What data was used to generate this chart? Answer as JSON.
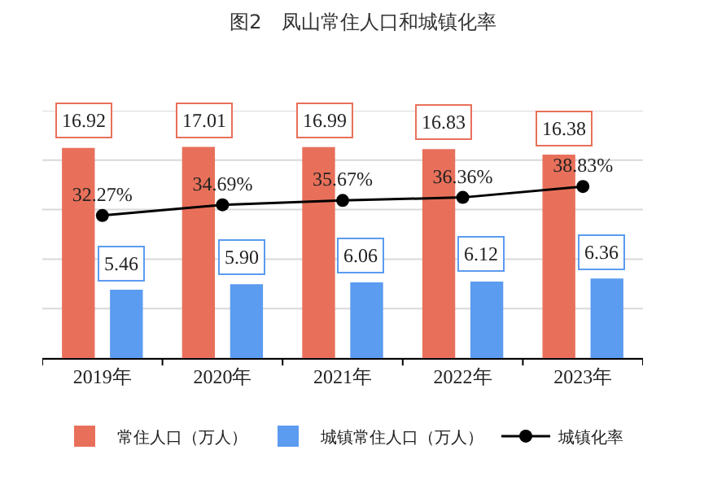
{
  "chart_data": {
    "type": "bar",
    "title": "图2　凤山常住人口和城镇化率",
    "categories": [
      "2019年",
      "2020年",
      "2021年",
      "2022年",
      "2023年"
    ],
    "series": [
      {
        "name": "常住人口（万人）",
        "color": "#e8705a",
        "values": [
          16.92,
          17.01,
          16.99,
          16.83,
          16.38
        ],
        "value_labels": [
          "16.92",
          "17.01",
          "16.99",
          "16.83",
          "16.38"
        ]
      },
      {
        "name": "城镇常住人口（万人）",
        "color": "#5b9bf0",
        "values": [
          5.46,
          5.9,
          6.06,
          6.12,
          6.36
        ],
        "value_labels": [
          "5.46",
          "5.90",
          "6.06",
          "6.12",
          "6.36"
        ]
      },
      {
        "name": "城镇化率",
        "type": "line",
        "axis": "y2",
        "color": "#000000",
        "values": [
          32.27,
          34.69,
          35.67,
          36.36,
          38.83
        ],
        "value_labels": [
          "32.27%",
          "34.69%",
          "35.67%",
          "36.36%",
          "38.83%"
        ]
      }
    ],
    "ylim": [
      0,
      20
    ],
    "yticks": [
      {
        "value": 0,
        "label": null
      },
      {
        "value": 4,
        "label": null
      },
      {
        "value": 8,
        "label": null
      },
      {
        "value": 12,
        "label": null
      },
      {
        "value": 16,
        "label": null
      },
      {
        "value": 20,
        "label": null
      }
    ],
    "y2lim": [
      0,
      56
    ],
    "tick_labels": "x",
    "grid": "y",
    "legend": "bottom",
    "marker": "circle"
  }
}
